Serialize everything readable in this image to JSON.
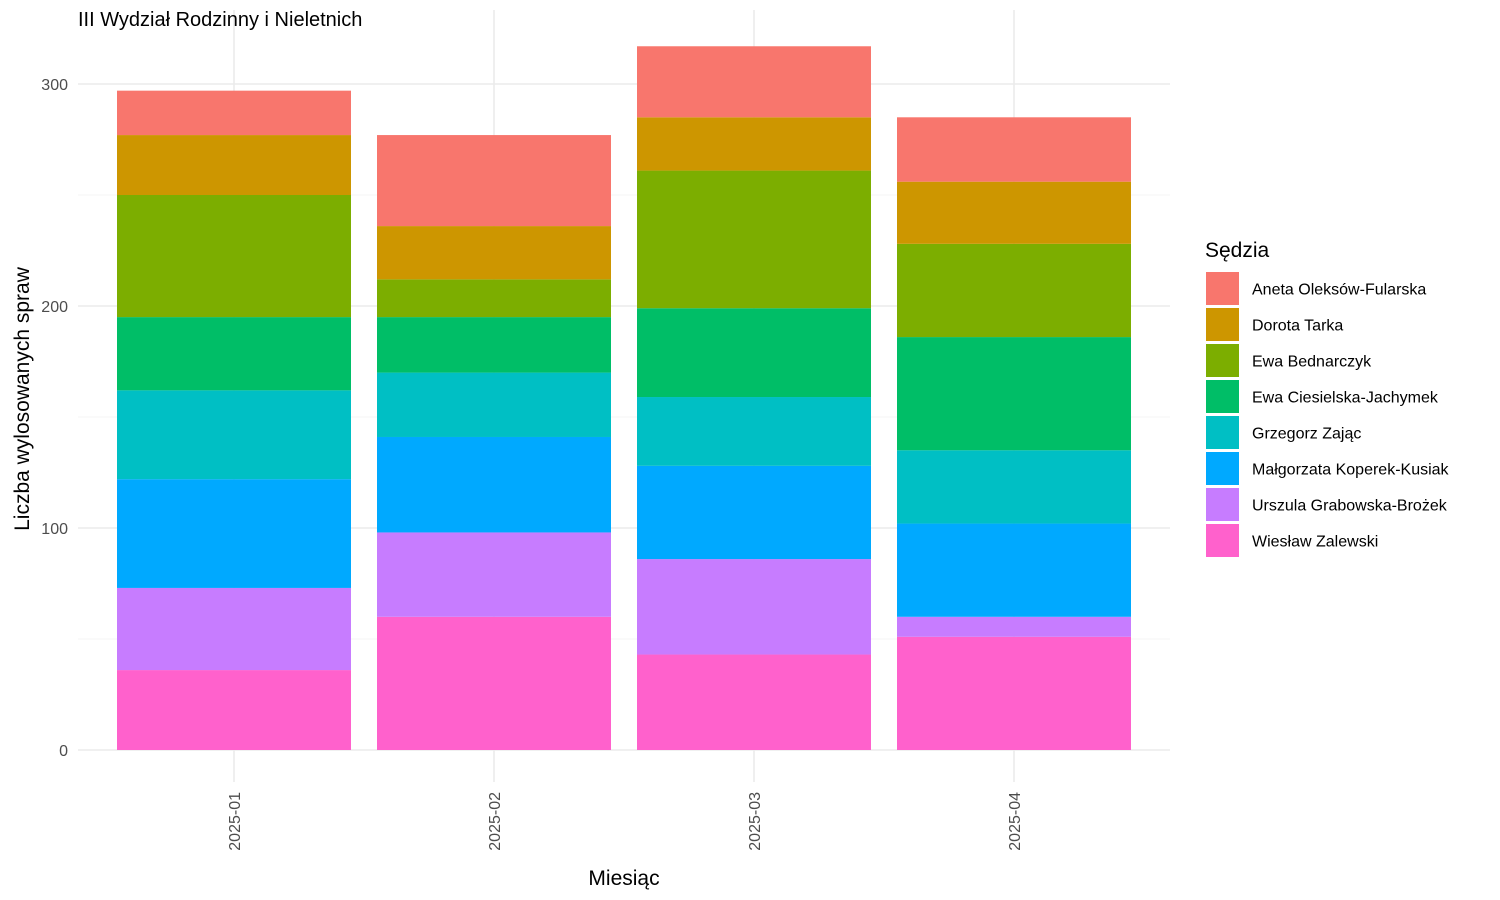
{
  "chart_data": {
    "type": "bar",
    "stacked": true,
    "title": "III Wydział Rodzinny i Nieletnich",
    "xlabel": "Miesiąc",
    "ylabel": "Liczba wylosowanych spraw",
    "legend_title": "Sędzia",
    "legend_position": "right",
    "grid": true,
    "ylim": [
      0,
      320
    ],
    "yticks": [
      0,
      100,
      200,
      300
    ],
    "categories": [
      "2025-01",
      "2025-02",
      "2025-03",
      "2025-04"
    ],
    "series": [
      {
        "name": "Aneta Oleksów-Fularska",
        "color": "#F8766D",
        "values": [
          20,
          41,
          32,
          29
        ]
      },
      {
        "name": "Dorota Tarka",
        "color": "#CD9600",
        "values": [
          27,
          24,
          24,
          28
        ]
      },
      {
        "name": "Ewa Bednarczyk",
        "color": "#7CAE00",
        "values": [
          55,
          17,
          62,
          42
        ]
      },
      {
        "name": "Ewa Ciesielska-Jachymek",
        "color": "#00BE67",
        "values": [
          33,
          25,
          40,
          51
        ]
      },
      {
        "name": "Grzegorz Zając",
        "color": "#00BFC4",
        "values": [
          40,
          29,
          31,
          33
        ]
      },
      {
        "name": "Małgorzata Koperek-Kusiak",
        "color": "#00A9FF",
        "values": [
          49,
          43,
          42,
          42
        ]
      },
      {
        "name": "Urszula Grabowska-Brożek",
        "color": "#C77CFF",
        "values": [
          37,
          38,
          43,
          9
        ]
      },
      {
        "name": "Wiesław Zalewski",
        "color": "#FF61CC",
        "values": [
          36,
          60,
          43,
          51
        ]
      }
    ]
  }
}
